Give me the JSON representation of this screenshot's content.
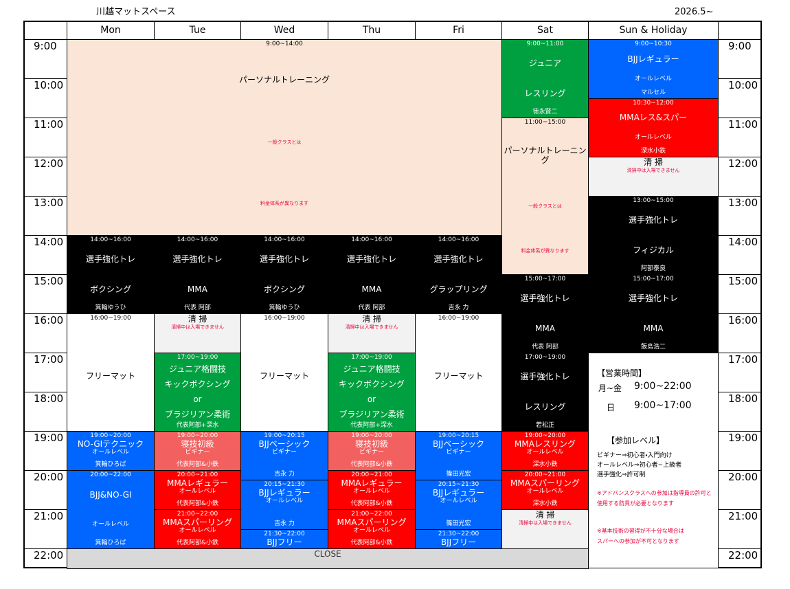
{
  "header": {
    "title": "川越マットスペース",
    "date": "2026.5~"
  },
  "days": [
    "Mon",
    "Tue",
    "Wed",
    "Thu",
    "Fri",
    "Sat",
    "Sun & Holiday"
  ],
  "hours": [
    "9:00",
    "10:00",
    "11:00",
    "12:00",
    "13:00",
    "14:00",
    "15:00",
    "16:00",
    "17:00",
    "18:00",
    "19:00",
    "20:00",
    "21:00",
    "22:00"
  ],
  "blocks": [
    {
      "time": "9:00~14:00",
      "main": [
        "パーソナルトレーニング"
      ],
      "note": [
        "一般クラスとは",
        "料金体系が異なります"
      ]
    },
    {
      "time": "9:00~11:00",
      "main": [
        "ジュニア",
        "レスリング"
      ],
      "foot": "徳永賢二"
    },
    {
      "time": "11:00~15:00",
      "main": [
        "パーソナルトレーニング"
      ],
      "note": [
        "一般クラスとは",
        "料金体系が異なります"
      ]
    },
    {
      "time": "9:00~10:30",
      "main": [
        "BJJレギュラー"
      ],
      "sub": [
        "オールレベル"
      ],
      "foot": "マルセル"
    },
    {
      "time": "10:30~12:00",
      "main": [
        "MMAレス&スパー"
      ],
      "sub": [
        "オールレベル"
      ],
      "foot": "深水小鉄"
    },
    {
      "main": [
        "清 掃"
      ],
      "note": [
        "清掃中は入場できません"
      ]
    },
    {
      "time": "13:00~15:00",
      "main": [
        "選手強化トレ",
        "フィジカル"
      ],
      "foot": "阿部泰良"
    },
    {
      "time": "14:00~16:00",
      "main": [
        "選手強化トレ",
        "ボクシング"
      ],
      "foot": "箕輪ゆうひ"
    },
    {
      "time": "14:00~16:00",
      "main": [
        "選手強化トレ",
        "MMA"
      ],
      "foot": "代表 阿部"
    },
    {
      "time": "14:00~16:00",
      "main": [
        "選手強化トレ",
        "ボクシング"
      ],
      "foot": "箕輪ゆうひ"
    },
    {
      "time": "14:00~16:00",
      "main": [
        "選手強化トレ",
        "MMA"
      ],
      "foot": "代表 阿部"
    },
    {
      "time": "14:00~16:00",
      "main": [
        "選手強化トレ",
        "グラップリング"
      ],
      "foot": "吉永 力"
    },
    {
      "time": "15:00~17:00",
      "main": [
        "選手強化トレ",
        "MMA"
      ],
      "foot": "代表 阿部"
    },
    {
      "time": "15:00~17:00",
      "main": [
        "選手強化トレ",
        "MMA"
      ],
      "foot": "飯島浩二"
    },
    {
      "time": "16:00~19:00",
      "main": [
        "フリーマット"
      ]
    },
    {
      "main": [
        "清 掃"
      ],
      "note": [
        "清掃中は入場できません"
      ]
    },
    {
      "time": "16:00~19:00",
      "main": [
        "フリーマット"
      ]
    },
    {
      "main": [
        "清 掃"
      ],
      "note": [
        "清掃中は入場できません"
      ]
    },
    {
      "time": "16:00~19:00",
      "main": [
        "フリーマット"
      ]
    },
    {
      "time": "17:00~19:00",
      "main": [
        "ジュニア格闘技",
        "キックボクシング",
        "or",
        "ブラジリアン柔術"
      ],
      "foot": "代表阿部+深水"
    },
    {
      "time": "17:00~19:00",
      "main": [
        "ジュニア格闘技",
        "キックボクシング",
        "or",
        "ブラジリアン柔術"
      ],
      "foot": "代表阿部+深水"
    },
    {
      "time": "17:00~19:00",
      "main": [
        "選手強化トレ",
        "レスリング"
      ],
      "foot": "若松正"
    },
    {
      "time": "19:00~20:00",
      "main": [
        "NO-GIテクニック"
      ],
      "sub": [
        "オールレベル"
      ],
      "foot": "箕輪ひろば"
    },
    {
      "time": "19:00~20:00",
      "main": [
        "寝技初級"
      ],
      "sub": [
        "ビギナー"
      ],
      "foot": "代表阿部&小鉄"
    },
    {
      "time": "19:00~20:15",
      "main": [
        "BJJベーシック"
      ],
      "sub": [
        "ビギナー"
      ],
      "foot": "吉永 力"
    },
    {
      "time": "19:00~20:00",
      "main": [
        "寝技初級"
      ],
      "sub": [
        "ビギナー"
      ],
      "foot": "代表阿部&小鉄"
    },
    {
      "time": "19:00~20:15",
      "main": [
        "BJJベーシック"
      ],
      "sub": [
        "ビギナー"
      ],
      "foot": "篠田光宏"
    },
    {
      "time": "19:00~20:00",
      "main": [
        "MMAレスリング"
      ],
      "sub": [
        "オールレベル"
      ],
      "foot": "深水小鉄"
    },
    {
      "time": "20:00~22:00",
      "main": [
        "BJJ&NO-GI"
      ],
      "sub": [
        "オールレベル"
      ],
      "foot": "箕輪ひろば"
    },
    {
      "time": "20:00~21:00",
      "main": [
        "MMAレギュラー"
      ],
      "sub": [
        "オールレベル"
      ],
      "foot": "代表阿部&小鉄"
    },
    {
      "time": "20:15~21:30",
      "main": [
        "BJJレギュラー"
      ],
      "sub": [
        "オールレベル"
      ],
      "foot": "吉永 力"
    },
    {
      "time": "20:00~21:00",
      "main": [
        "MMAレギュラー"
      ],
      "sub": [
        "オールレベル"
      ],
      "foot": "代表阿部&小鉄"
    },
    {
      "time": "20:15~21:30",
      "main": [
        "BJJレギュラー"
      ],
      "sub": [
        "オールレベル"
      ],
      "foot": "篠田光宏"
    },
    {
      "time": "20:00~21:00",
      "main": [
        "MMAスパーリング"
      ],
      "sub": [
        "オールレベル"
      ],
      "foot": "深水小鉄"
    },
    {
      "time": "21:00~22:00",
      "main": [
        "MMAスパーリング"
      ],
      "sub": [
        "オールレベル"
      ],
      "foot": "代表阿部&小鉄"
    },
    {
      "time": "21:30~22:00",
      "main": [
        "BJJフリー"
      ]
    },
    {
      "time": "21:00~22:00",
      "main": [
        "MMAスパーリング"
      ],
      "sub": [
        "オールレベル"
      ],
      "foot": "代表阿部&小鉄"
    },
    {
      "time": "21:30~22:00",
      "main": [
        "BJJフリー"
      ]
    },
    {
      "main": [
        "清 掃"
      ],
      "note": [
        "清掃中は入場できません"
      ]
    },
    {
      "main": [
        "CLOSE"
      ]
    }
  ],
  "info": {
    "hours_title": "【営業時間】",
    "weekday": "月~金",
    "weekday_hours": "9:00~22:00",
    "sunday": "日",
    "sunday_hours": "9:00~17:00",
    "level_title": "【参加レベル】",
    "levels": [
      "ビギナー⇒初心者・入門向け",
      "オールレベル⇒初心者~上級者",
      "選手強化⇒許可制"
    ],
    "notes": [
      "※アドバンスクラスへの参加は指導員の許可と",
      "使用する防具が必要となります",
      "※基本技術の習得が不十分な場合は",
      "スパーへの参加が不可となります"
    ]
  }
}
